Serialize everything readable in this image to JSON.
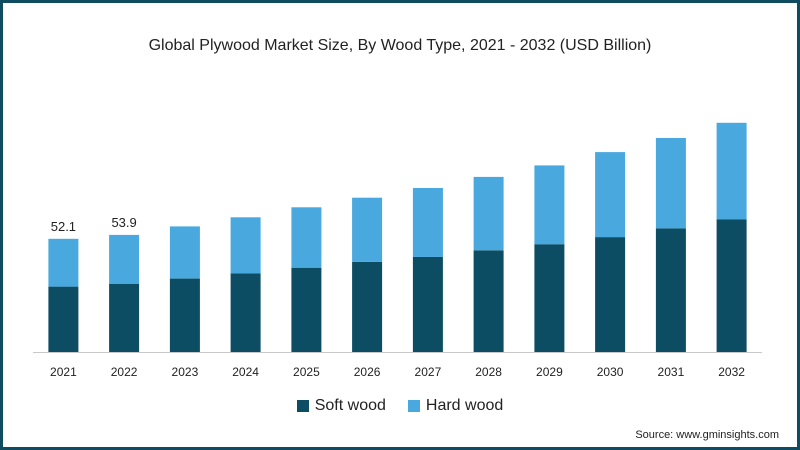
{
  "chart_data": {
    "type": "bar",
    "stacked": true,
    "title": "Global Plywood Market Size, By Wood Type, 2021 - 2032 (USD Billion)",
    "categories": [
      "2021",
      "2022",
      "2023",
      "2024",
      "2025",
      "2026",
      "2027",
      "2028",
      "2029",
      "2030",
      "2031",
      "2032"
    ],
    "series": [
      {
        "name": "Soft wood",
        "color": "#0d4d63",
        "values": [
          30.1,
          31.3,
          33.8,
          36.2,
          38.8,
          41.5,
          43.8,
          46.8,
          49.6,
          52.9,
          56.9,
          61.0
        ]
      },
      {
        "name": "Hard wood",
        "color": "#49a9de",
        "values": [
          22.0,
          22.6,
          24.0,
          25.8,
          27.8,
          29.5,
          31.7,
          33.8,
          36.3,
          39.1,
          41.6,
          44.5
        ]
      }
    ],
    "data_labels": {
      "2021": "52.1",
      "2022": "53.9"
    },
    "ylim": [
      0,
      110
    ],
    "grid": false,
    "legend_position": "bottom-center"
  },
  "source": "Source: www.gminsights.com"
}
